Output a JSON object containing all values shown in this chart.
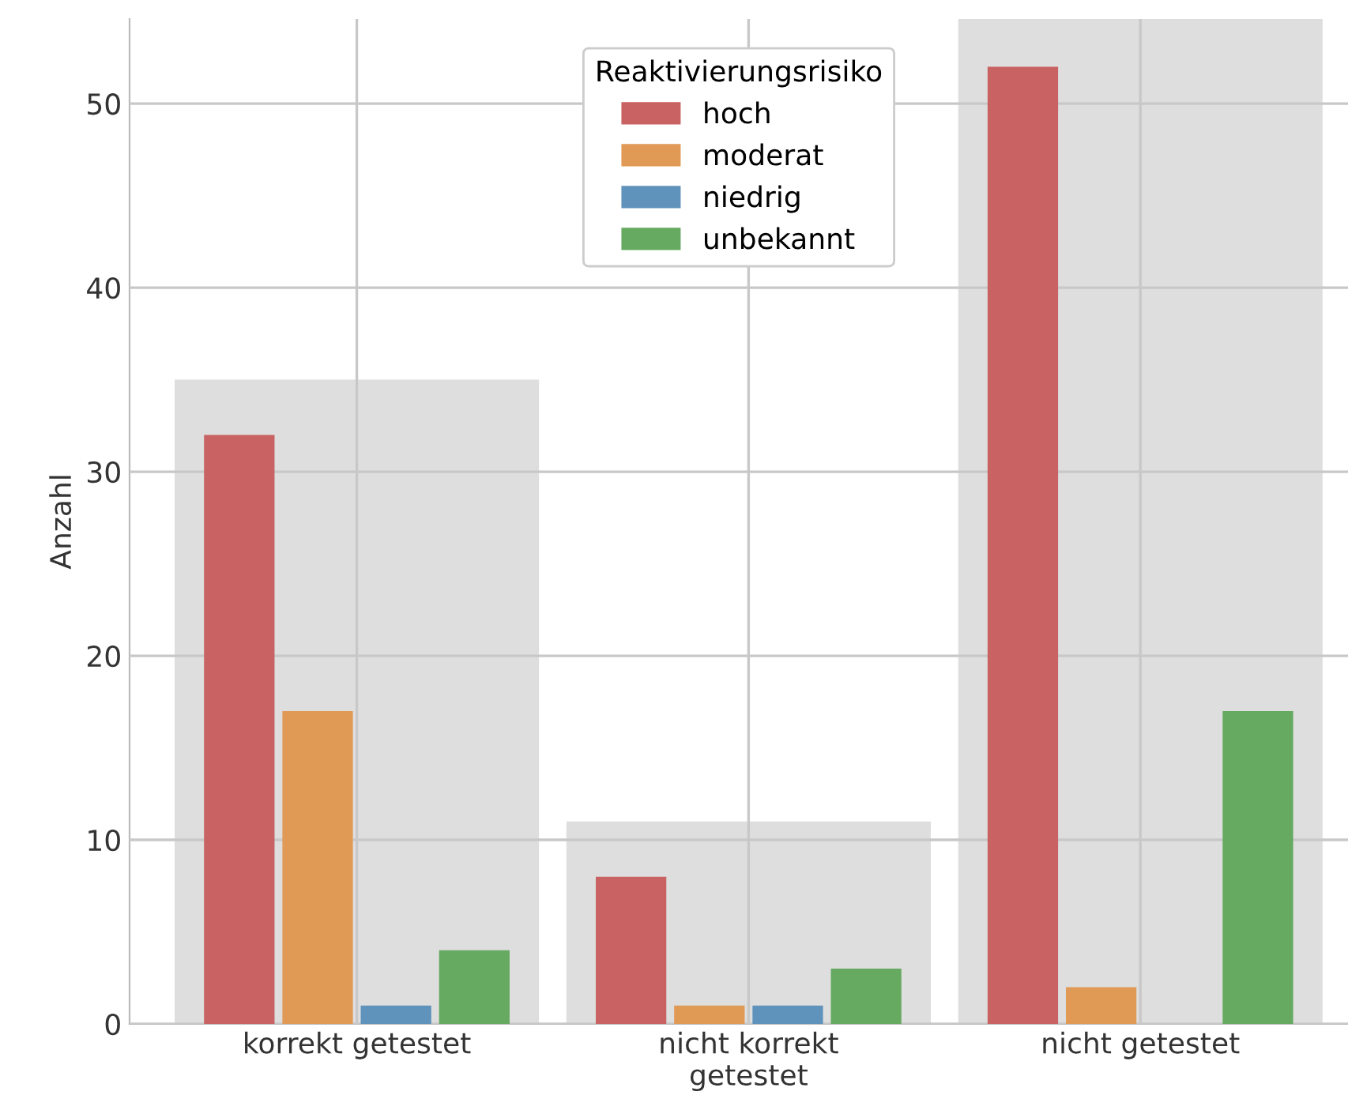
{
  "chart_data": {
    "type": "bar",
    "ylabel": "Anzahl",
    "legend_title": "Reaktivierungsrisiko",
    "legend": "top",
    "grid": true,
    "categories": [
      "korrekt getestet",
      "nicht korrekt\ngetestet",
      "nicht getestet"
    ],
    "ylim": [
      0,
      54.6
    ],
    "yticks": [
      0,
      10,
      20,
      30,
      40,
      50
    ],
    "series": [
      {
        "color": "#dedede",
        "values": [
          35,
          11,
          54.6
        ]
      },
      {
        "name": "hoch",
        "color": "#c96262",
        "values": [
          32,
          8,
          52
        ]
      },
      {
        "name": "moderat",
        "color": "#e09a56",
        "values": [
          17,
          1,
          2
        ]
      },
      {
        "name": "niedrig",
        "color": "#5f93bc",
        "values": [
          1,
          1,
          0
        ]
      },
      {
        "name": "unbekannt",
        "color": "#66a961",
        "values": [
          4,
          3,
          17
        ]
      }
    ]
  }
}
